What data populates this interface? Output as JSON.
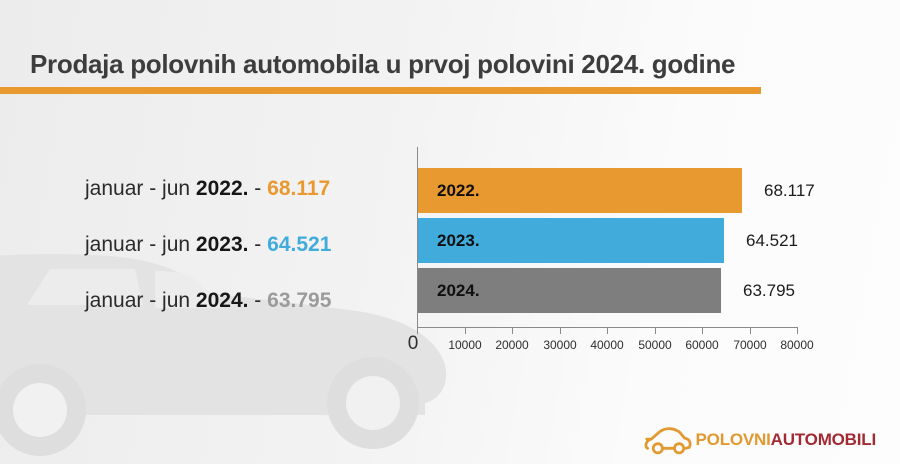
{
  "header": {
    "title": "Prodaja polovnih automobila u prvoj polovini 2024. godine",
    "divider_color": "#E8992F"
  },
  "summary": {
    "items": [
      {
        "period": "januar - jun",
        "year": "2022.",
        "separator": "-",
        "value": "68.117",
        "value_color": "#E8992F"
      },
      {
        "period": "januar - jun",
        "year": "2023.",
        "separator": "-",
        "value": "64.521",
        "value_color": "#41ACDC"
      },
      {
        "period": "januar - jun",
        "year": "2024.",
        "separator": "-",
        "value": "63.795",
        "value_color": "#9B9B9B"
      }
    ]
  },
  "chart_data": {
    "type": "bar",
    "orientation": "horizontal",
    "categories": [
      "2022.",
      "2023.",
      "2024."
    ],
    "values": [
      68117,
      64521,
      63795
    ],
    "value_labels": [
      "68.117",
      "64.521",
      "63.795"
    ],
    "bar_colors": [
      "#E8992F",
      "#41ACDC",
      "#7E7E7E"
    ],
    "xlim": [
      0,
      80000
    ],
    "x_ticks": [
      0,
      10000,
      20000,
      30000,
      40000,
      50000,
      60000,
      70000,
      80000
    ],
    "grid": false,
    "legend_position": "none",
    "title": "",
    "xlabel": "",
    "ylabel": ""
  },
  "logo": {
    "part1": "POLOVNI",
    "part2": "AUTOMOBILI",
    "part1_color": "#E2992F",
    "part2_color": "#A12A33",
    "icon": "car-outline-icon"
  },
  "watermark": {
    "icon": "car-silhouette",
    "body_color": "#e3e3e3",
    "wheel_color": "#dedede",
    "wheel_hub_color": "#f1f1f1"
  }
}
